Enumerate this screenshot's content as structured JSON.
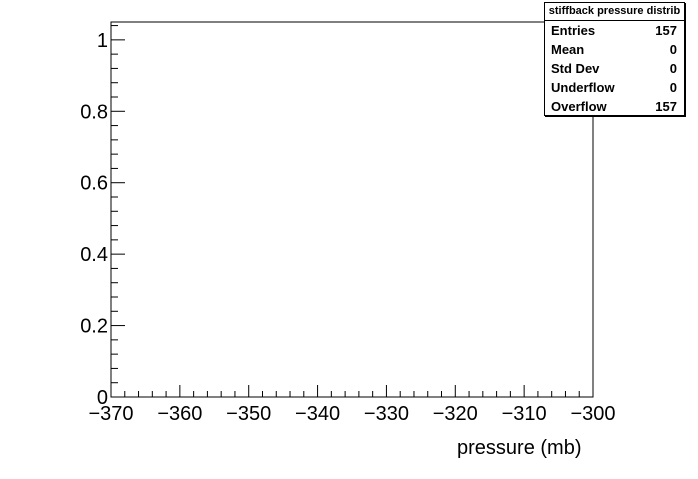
{
  "chart_data": {
    "type": "bar",
    "title": "",
    "xlabel": "pressure (mb)",
    "ylabel": "",
    "xlim": [
      -370,
      -300
    ],
    "ylim": [
      0,
      1.05
    ],
    "x_tick_labels": [
      "−370",
      "−360",
      "−350",
      "−340",
      "−330",
      "−320",
      "−310",
      "−300"
    ],
    "x_tick_values": [
      -370,
      -360,
      -350,
      -340,
      -330,
      -320,
      -310,
      -300
    ],
    "y_tick_labels": [
      "0",
      "0.2",
      "0.4",
      "0.6",
      "0.8",
      "1"
    ],
    "y_tick_values": [
      0,
      0.2,
      0.4,
      0.6,
      0.8,
      1
    ],
    "bins": [],
    "values": [],
    "grid": false,
    "legend": "none"
  },
  "stats": {
    "title": "stiffback pressure distrib",
    "rows": [
      {
        "label": "Entries",
        "value": "157"
      },
      {
        "label": "Mean",
        "value": "0"
      },
      {
        "label": "Std Dev",
        "value": "0"
      },
      {
        "label": "Underflow",
        "value": "0"
      },
      {
        "label": "Overflow",
        "value": "157"
      }
    ]
  }
}
